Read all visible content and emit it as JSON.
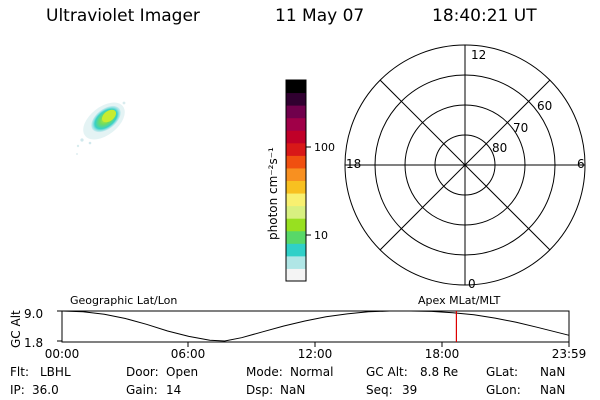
{
  "header": {
    "instrument": "Ultraviolet Imager",
    "date": "11 May 07",
    "time": "18:40:21 UT"
  },
  "colorbar": {
    "unit_label": "photon cm⁻²s⁻¹",
    "tick_labels": [
      "100",
      "10"
    ],
    "scale": "log",
    "colors": [
      "#f4f4f4",
      "#b0e6e6",
      "#30d0c8",
      "#58d868",
      "#98e020",
      "#d8f080",
      "#f8f070",
      "#f8c020",
      "#f89020",
      "#f05010",
      "#d81818",
      "#c00028",
      "#a00048",
      "#70004c",
      "#300030",
      "#000000"
    ]
  },
  "polar_plot": {
    "mlt_labels": {
      "top": "12",
      "left": "18",
      "right": "6",
      "bottom": "0"
    },
    "lat_labels": [
      "60",
      "70",
      "80"
    ]
  },
  "timeline": {
    "y_axis_label": "GC Alt",
    "y_ticks": [
      "9.0",
      "1.8"
    ],
    "left_title": "Geographic Lat/Lon",
    "right_title": "Apex MLat/MLT",
    "x_ticks": [
      "00:00",
      "06:00",
      "12:00",
      "18:00",
      "23:59"
    ],
    "marker_color": "#dd0000"
  },
  "chart_data": {
    "type": "line",
    "xlabel": "",
    "ylabel": "GC Alt",
    "xlim": [
      "00:00",
      "23:59"
    ],
    "ylim": [
      1.8,
      9.0
    ],
    "x_hours": [
      0,
      1,
      2,
      3,
      4,
      5,
      6,
      7,
      7.7,
      8.5,
      9.5,
      10.5,
      11.5,
      12.5,
      13.5,
      14.5,
      15.5,
      16.5,
      17.5,
      18.5,
      19.5,
      20.5,
      21.5,
      22.5,
      23.98
    ],
    "values": [
      9.0,
      8.8,
      8.2,
      7.2,
      5.8,
      4.2,
      2.9,
      2.0,
      1.8,
      2.6,
      4.0,
      5.4,
      6.6,
      7.6,
      8.3,
      8.8,
      9.0,
      9.0,
      8.9,
      8.6,
      8.1,
      7.3,
      6.3,
      5.1,
      3.2
    ],
    "current_time_hours": 18.67
  },
  "status": {
    "flt_label": "Flt:",
    "flt_value": "LBHL",
    "door_label": "Door:",
    "door_value": "Open",
    "mode_label": "Mode:",
    "mode_value": "Normal",
    "gcalt_label": "GC Alt:",
    "gcalt_value": "8.8 Re",
    "glat_label": "GLat:",
    "glat_value": "NaN",
    "ip_label": "IP:",
    "ip_value": "36.0",
    "gain_label": "Gain:",
    "gain_value": "14",
    "dsp_label": "Dsp:",
    "dsp_value": "NaN",
    "seq_label": "Seq:",
    "seq_value": "39",
    "glon_label": "GLon:",
    "glon_value": "NaN"
  }
}
